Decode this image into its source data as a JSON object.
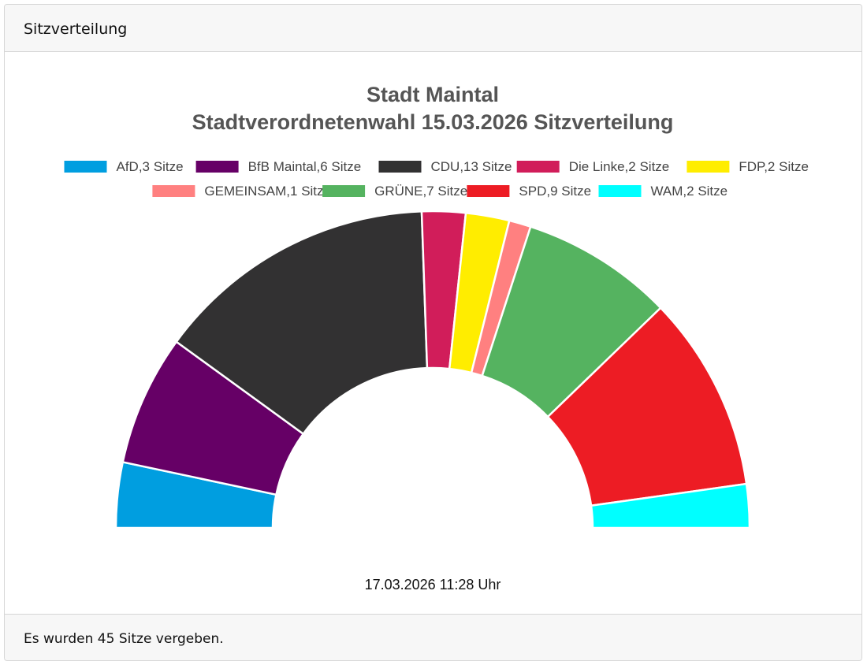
{
  "header": {
    "title": "Sitzverteilung"
  },
  "footer": {
    "text": "Es wurden 45 Sitze vergeben."
  },
  "chart_data": {
    "type": "pie",
    "variant": "semi-donut",
    "title": [
      "Stadt Maintal",
      "Stadtverordnetenwahl 15.03.2026 Sitzverteilung"
    ],
    "timestamp": "17.03.2026 11:28 Uhr",
    "legend_position": "top",
    "categories": [
      "AfD",
      "BfB Maintal",
      "CDU",
      "Die Linke",
      "FDP",
      "GEMEINSAM",
      "GRÜNE",
      "SPD",
      "WAM"
    ],
    "values": [
      3,
      6,
      13,
      2,
      2,
      1,
      7,
      9,
      2
    ],
    "legend_labels": [
      "AfD,3 Sitze",
      "BfB Maintal,6 Sitze",
      "CDU,13 Sitze",
      "Die Linke,2 Sitze",
      "FDP,2 Sitze",
      "GEMEINSAM,1 Sitze",
      "GRÜNE,7 Sitze",
      "SPD,9 Sitze",
      "WAM,2 Sitze"
    ],
    "colors": [
      "#009ee0",
      "#660066",
      "#323132",
      "#d11d5a",
      "#ffed00",
      "#ff8080",
      "#55b360",
      "#ed1c24",
      "#00ffff"
    ]
  }
}
